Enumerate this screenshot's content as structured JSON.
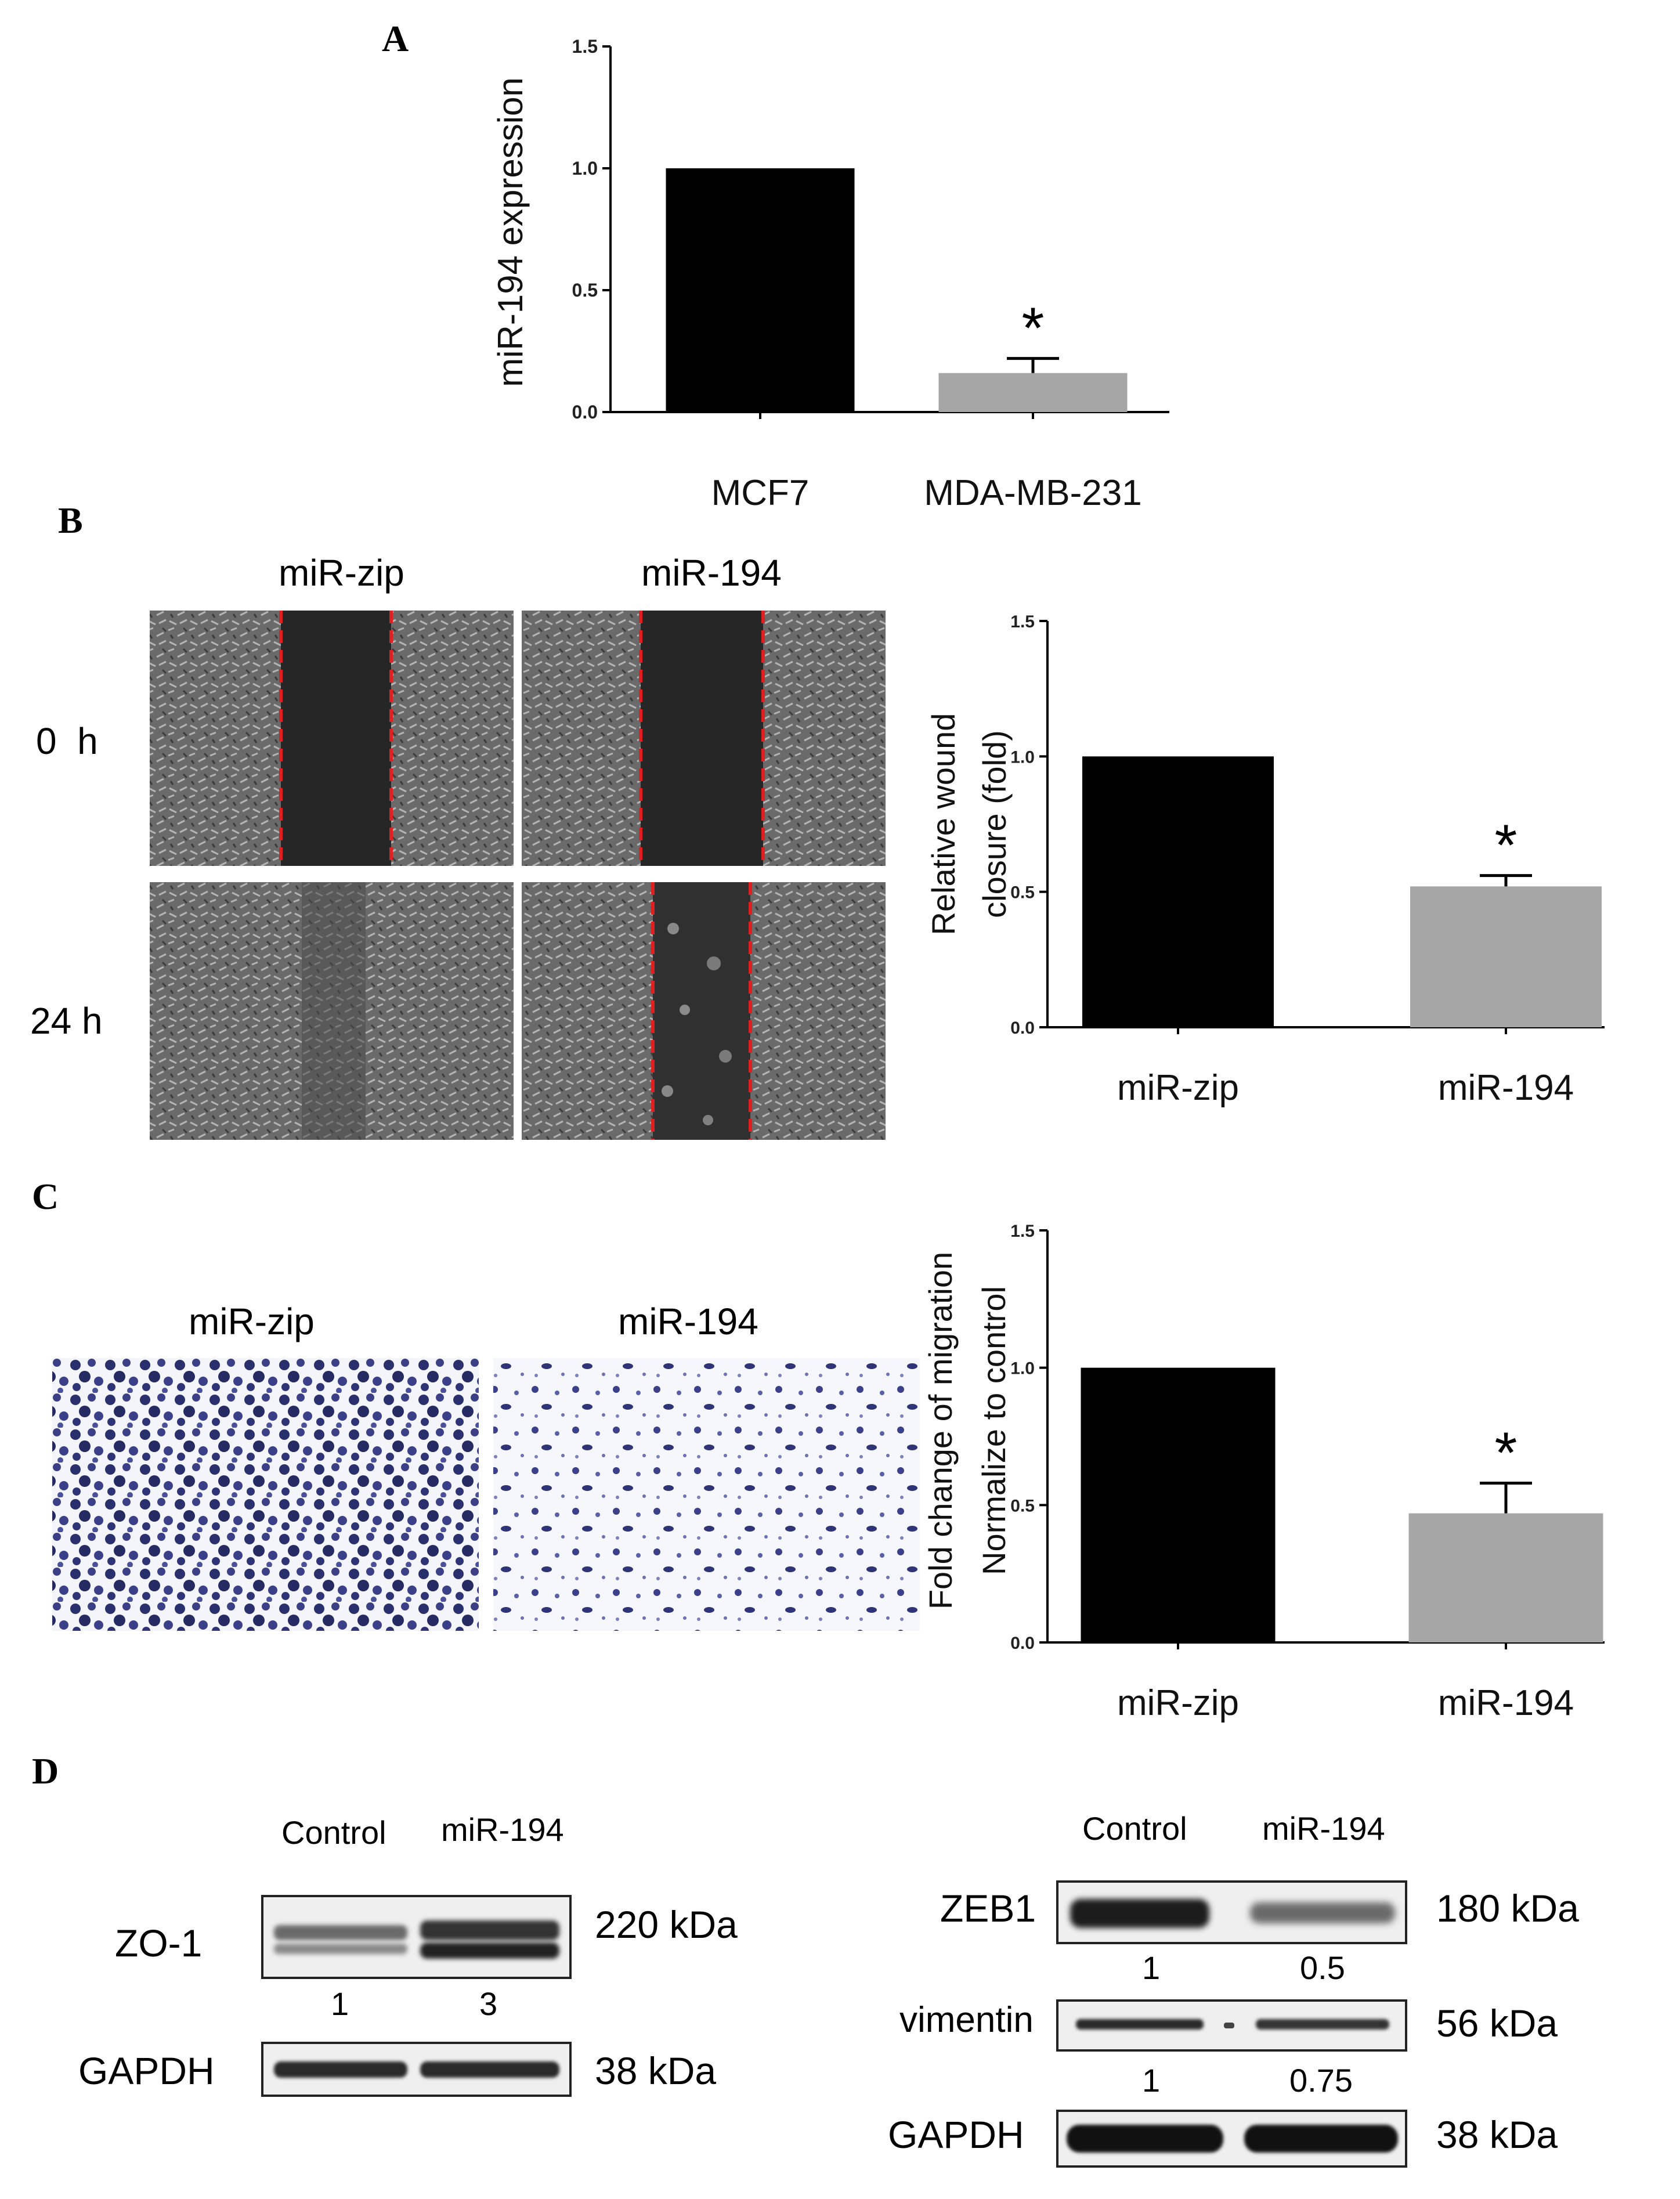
{
  "panels": {
    "A": {
      "letter": "A",
      "chart_data": {
        "type": "bar",
        "categories": [
          "MCF7",
          "MDA-MB-231"
        ],
        "values": [
          1.0,
          0.16
        ],
        "errors": [
          0,
          0.06
        ],
        "significance": [
          "",
          "*"
        ],
        "bar_colors": [
          "#000000",
          "#a6a6a6"
        ],
        "xlabel": "",
        "ylabel": "miR-194 expression",
        "ylim": [
          0,
          1.5
        ],
        "yticks": [
          "0.0",
          "0.5",
          "1.0",
          "1.5"
        ]
      }
    },
    "B": {
      "letter": "B",
      "column_labels": [
        "miR-zip",
        "miR-194"
      ],
      "row_labels": [
        "0  h",
        "24 h"
      ],
      "chart_data": {
        "type": "bar",
        "categories": [
          "miR-zip",
          "miR-194"
        ],
        "values": [
          1.0,
          0.52
        ],
        "errors": [
          0,
          0.04
        ],
        "significance": [
          "",
          "*"
        ],
        "bar_colors": [
          "#000000",
          "#a6a6a6"
        ],
        "xlabel": "",
        "ylabel": [
          "Relative wound",
          "closure (fold)"
        ],
        "ylim": [
          0,
          1.5
        ],
        "yticks": [
          "0.0",
          "0.5",
          "1.0",
          "1.5"
        ]
      }
    },
    "C": {
      "letter": "C",
      "column_labels": [
        "miR-zip",
        "miR-194"
      ],
      "chart_data": {
        "type": "bar",
        "categories": [
          "miR-zip",
          "miR-194"
        ],
        "values": [
          1.0,
          0.47
        ],
        "errors": [
          0,
          0.11
        ],
        "significance": [
          "",
          "*"
        ],
        "bar_colors": [
          "#000000",
          "#a6a6a6"
        ],
        "xlabel": "",
        "ylabel": [
          "Fold change of migration",
          "Normalize to control"
        ],
        "ylim": [
          0,
          1.5
        ],
        "yticks": [
          "0.0",
          "0.5",
          "1.0",
          "1.5"
        ]
      }
    },
    "D": {
      "letter": "D",
      "left": {
        "col_labels": [
          "Control",
          "miR-194"
        ],
        "blots": [
          {
            "name": "ZO-1",
            "size": "220 kDa",
            "quant": [
              "1",
              "3"
            ]
          },
          {
            "name": "GAPDH",
            "size": "38 kDa",
            "quant": []
          }
        ]
      },
      "right": {
        "col_labels": [
          "Control",
          "miR-194"
        ],
        "blots": [
          {
            "name": "ZEB1",
            "size": "180 kDa",
            "quant": [
              "1",
              "0.5"
            ]
          },
          {
            "name": "vimentin",
            "size": "56 kDa",
            "quant": [
              "1",
              "0.75"
            ]
          },
          {
            "name": "GAPDH",
            "size": "38 kDa",
            "quant": []
          }
        ]
      }
    }
  }
}
